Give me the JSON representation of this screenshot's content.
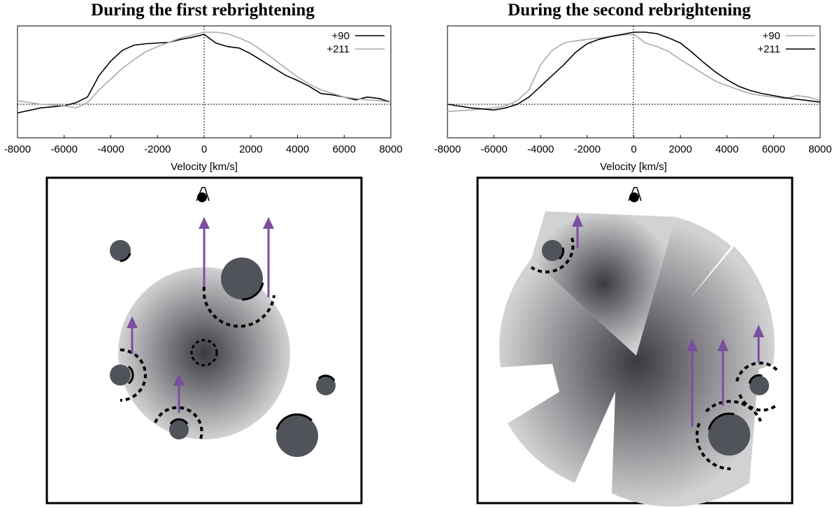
{
  "panels": [
    {
      "title": "During the first rebrightening",
      "legend": [
        {
          "label": "+90",
          "color": "#000000"
        },
        {
          "label": "+211",
          "color": "#aaaaaa"
        }
      ]
    },
    {
      "title": "During the second rebrightening",
      "legend": [
        {
          "label": "+90",
          "color": "#aaaaaa"
        },
        {
          "label": "+211",
          "color": "#000000"
        }
      ]
    }
  ],
  "xlabel": "Velocity [km/s]",
  "colors": {
    "arrow": "#7b4fa0",
    "cloud": "#50535a",
    "dashed": "#000000"
  },
  "chart_data": [
    {
      "type": "line",
      "xlabel": "Velocity [km/s]",
      "xlim": [
        -8000,
        8000
      ],
      "xticks": [
        -8000,
        -6000,
        -4000,
        -2000,
        0,
        2000,
        4000,
        6000,
        8000
      ],
      "series": [
        {
          "name": "+90",
          "color": "#000000",
          "x": [
            -8000,
            -7000,
            -6000,
            -5500,
            -5000,
            -4500,
            -4000,
            -3500,
            -3000,
            -2500,
            -2000,
            -1500,
            -1000,
            -500,
            0,
            500,
            1000,
            1500,
            2000,
            2500,
            3000,
            3500,
            4000,
            4500,
            5000,
            5500,
            6000,
            6500,
            7000,
            7500,
            8000
          ],
          "y": [
            -0.12,
            -0.05,
            -0.02,
            0.02,
            0.1,
            0.4,
            0.6,
            0.75,
            0.82,
            0.84,
            0.85,
            0.86,
            0.9,
            0.93,
            0.97,
            0.85,
            0.8,
            0.78,
            0.7,
            0.6,
            0.5,
            0.4,
            0.33,
            0.25,
            0.15,
            0.13,
            0.1,
            0.06,
            0.1,
            0.08,
            0.03
          ]
        },
        {
          "name": "+211",
          "color": "#aaaaaa",
          "x": [
            -8000,
            -7000,
            -6000,
            -5500,
            -5000,
            -4500,
            -4000,
            -3500,
            -3000,
            -2500,
            -2000,
            -1500,
            -1000,
            -500,
            0,
            500,
            1000,
            1500,
            2000,
            2500,
            3000,
            3500,
            4000,
            4500,
            5000,
            5500,
            6000,
            6500,
            7000,
            7500,
            8000
          ],
          "y": [
            0.05,
            0.0,
            -0.02,
            -0.05,
            0.02,
            0.2,
            0.35,
            0.5,
            0.62,
            0.73,
            0.8,
            0.86,
            0.92,
            0.96,
            1.0,
            1.0,
            0.98,
            0.92,
            0.85,
            0.74,
            0.62,
            0.5,
            0.38,
            0.28,
            0.2,
            0.15,
            0.1,
            0.08,
            0.06,
            0.05,
            0.03
          ]
        }
      ]
    },
    {
      "type": "line",
      "xlabel": "Velocity [km/s]",
      "xlim": [
        -8000,
        8000
      ],
      "xticks": [
        -8000,
        -6000,
        -4000,
        -2000,
        0,
        2000,
        4000,
        6000,
        8000
      ],
      "series": [
        {
          "name": "+90",
          "color": "#aaaaaa",
          "x": [
            -8000,
            -7000,
            -6000,
            -5500,
            -5000,
            -4500,
            -4000,
            -3500,
            -3000,
            -2500,
            -2000,
            -1500,
            -1000,
            -500,
            0,
            500,
            1000,
            1500,
            2000,
            2500,
            3000,
            3500,
            4000,
            4500,
            5000,
            5500,
            6000,
            6500,
            7000,
            7500,
            8000
          ],
          "y": [
            -0.1,
            -0.08,
            -0.05,
            -0.02,
            0.05,
            0.2,
            0.55,
            0.75,
            0.85,
            0.88,
            0.9,
            0.92,
            0.94,
            0.96,
            0.97,
            0.85,
            0.8,
            0.73,
            0.62,
            0.52,
            0.42,
            0.32,
            0.26,
            0.2,
            0.15,
            0.12,
            0.1,
            0.08,
            0.12,
            0.1,
            0.05
          ]
        },
        {
          "name": "+211",
          "color": "#000000",
          "x": [
            -8000,
            -7000,
            -6000,
            -5500,
            -5000,
            -4500,
            -4000,
            -3500,
            -3000,
            -2500,
            -2000,
            -1500,
            -1000,
            -500,
            0,
            500,
            1000,
            1500,
            2000,
            2500,
            3000,
            3500,
            4000,
            4500,
            5000,
            5500,
            6000,
            6500,
            7000,
            7500,
            8000
          ],
          "y": [
            0.0,
            -0.05,
            -0.08,
            -0.05,
            0.0,
            0.1,
            0.25,
            0.4,
            0.55,
            0.72,
            0.84,
            0.9,
            0.94,
            0.97,
            1.0,
            1.0,
            0.98,
            0.92,
            0.85,
            0.72,
            0.58,
            0.45,
            0.34,
            0.25,
            0.19,
            0.15,
            0.12,
            0.09,
            0.07,
            0.05,
            0.03
          ]
        }
      ]
    }
  ]
}
